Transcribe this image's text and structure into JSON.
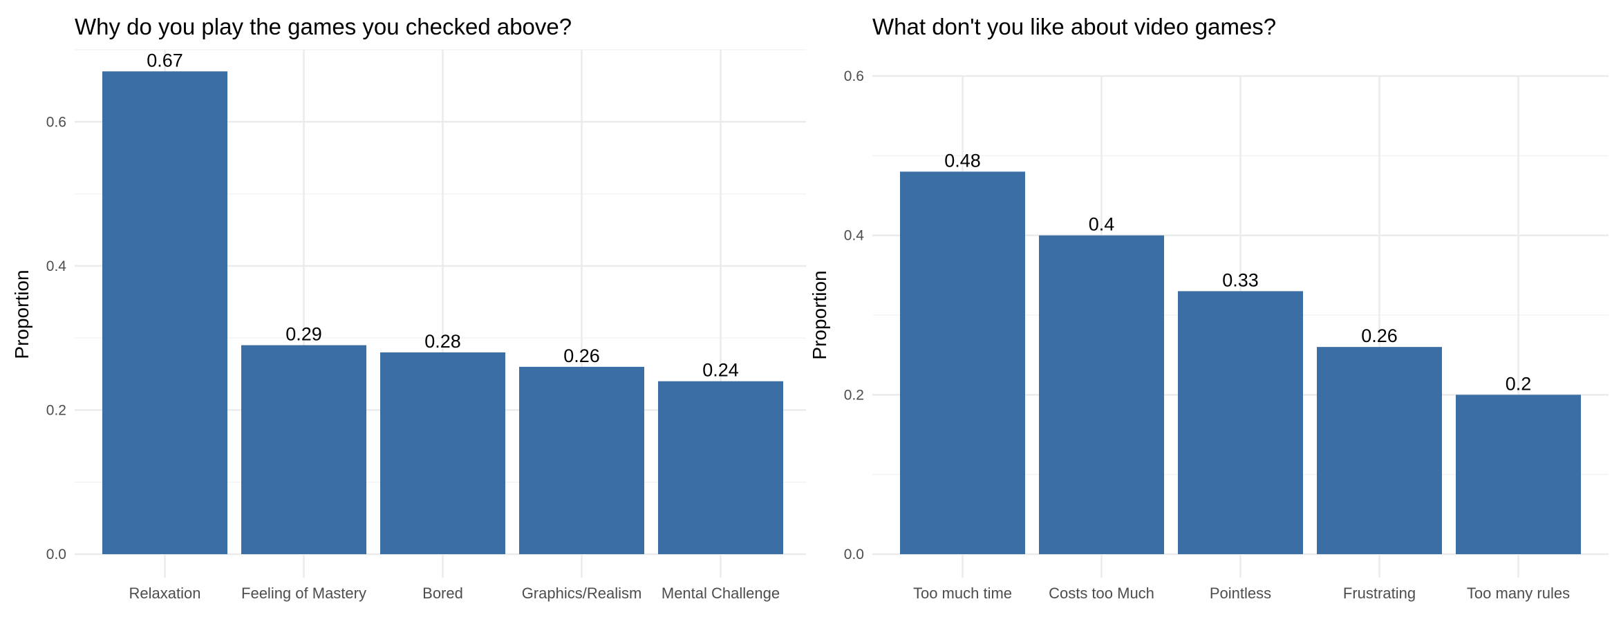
{
  "colors": {
    "bar": "#3a6ea5",
    "grid_major": "#ebebeb",
    "grid_minor": "#f3f3f3",
    "tick_text": "#4d4d4d",
    "text": "#000000"
  },
  "chart_data": [
    {
      "type": "bar",
      "title": "Why do you play the games you checked above?",
      "xlabel": "",
      "ylabel": "Proportion",
      "categories": [
        "Relaxation",
        "Feeling of Mastery",
        "Bored",
        "Graphics/Realism",
        "Mental Challenge"
      ],
      "values": [
        0.67,
        0.29,
        0.28,
        0.26,
        0.24
      ],
      "data_labels": [
        "0.67",
        "0.29",
        "0.28",
        "0.26",
        "0.24"
      ],
      "ylim": [
        0,
        0.7
      ],
      "y_ticks": [
        0.0,
        0.2,
        0.4,
        0.6
      ],
      "y_tick_labels": [
        "0.0",
        "0.2",
        "0.4",
        "0.6"
      ],
      "grid": true,
      "legend": "none"
    },
    {
      "type": "bar",
      "title": "What don't you like about video games?",
      "xlabel": "",
      "ylabel": "Proportion",
      "categories": [
        "Too much time",
        "Costs too Much",
        "Pointless",
        "Frustrating",
        "Too many rules"
      ],
      "values": [
        0.48,
        0.4,
        0.33,
        0.26,
        0.2
      ],
      "data_labels": [
        "0.48",
        "0.4",
        "0.33",
        "0.26",
        "0.2"
      ],
      "ylim": [
        0,
        0.6
      ],
      "y_ticks": [
        0.0,
        0.2,
        0.4,
        0.6
      ],
      "y_tick_labels": [
        "0.0",
        "0.2",
        "0.4",
        "0.6"
      ],
      "grid": true,
      "legend": "none"
    }
  ]
}
